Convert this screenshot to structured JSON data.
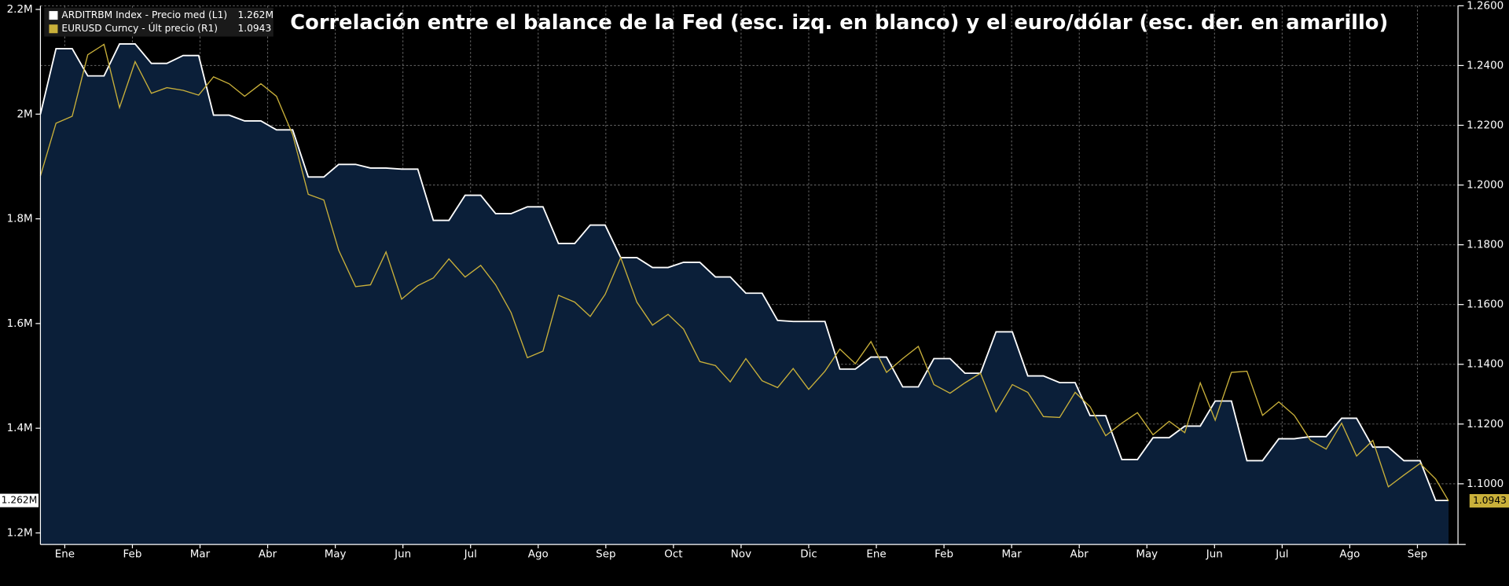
{
  "chart_data": {
    "type": "line",
    "title": "Correlación entre el balance de la Fed (esc. izq. en blanco) y el euro/dólar (esc. der. en amarillo)",
    "xlim": [
      0.14,
      21.1
    ],
    "xticks": [
      {
        "value": 0.5,
        "label": "Ene"
      },
      {
        "value": 1.5,
        "label": "Feb"
      },
      {
        "value": 2.5,
        "label": "Mar"
      },
      {
        "value": 3.5,
        "label": "Abr"
      },
      {
        "value": 4.5,
        "label": "May"
      },
      {
        "value": 5.5,
        "label": "Jun"
      },
      {
        "value": 6.5,
        "label": "Jul"
      },
      {
        "value": 7.5,
        "label": "Ago"
      },
      {
        "value": 8.5,
        "label": "Sep"
      },
      {
        "value": 9.5,
        "label": "Oct"
      },
      {
        "value": 10.5,
        "label": "Nov"
      },
      {
        "value": 11.5,
        "label": "Dic"
      },
      {
        "value": 12.5,
        "label": "Ene"
      },
      {
        "value": 13.5,
        "label": "Feb"
      },
      {
        "value": 14.5,
        "label": "Mar"
      },
      {
        "value": 15.5,
        "label": "Abr"
      },
      {
        "value": 16.5,
        "label": "May"
      },
      {
        "value": 17.5,
        "label": "Jun"
      },
      {
        "value": 18.5,
        "label": "Jul"
      },
      {
        "value": 19.5,
        "label": "Ago"
      },
      {
        "value": 20.5,
        "label": "Sep"
      }
    ],
    "ylim": [
      1178000,
      2207000
    ],
    "yticks": [
      {
        "value": 1200000,
        "label": "1.2M"
      },
      {
        "value": 1400000,
        "label": "1.4M"
      },
      {
        "value": 1600000,
        "label": "1.6M"
      },
      {
        "value": 1800000,
        "label": "1.8M"
      },
      {
        "value": 2000000,
        "label": "2M"
      },
      {
        "value": 2200000,
        "label": "2.2M"
      }
    ],
    "y2lim": [
      1.0797,
      1.26
    ],
    "y2ticks": [
      {
        "value": 1.1,
        "label": "1.1000"
      },
      {
        "value": 1.12,
        "label": "1.1200"
      },
      {
        "value": 1.14,
        "label": "1.1400"
      },
      {
        "value": 1.16,
        "label": "1.1600"
      },
      {
        "value": 1.18,
        "label": "1.1800"
      },
      {
        "value": 1.2,
        "label": "1.2000"
      },
      {
        "value": 1.22,
        "label": "1.2200"
      },
      {
        "value": 1.24,
        "label": "1.2400"
      },
      {
        "value": 1.26,
        "label": "1.2600"
      }
    ],
    "grid": true,
    "x": [
      0.14,
      0.37,
      0.61,
      0.84,
      1.08,
      1.31,
      1.54,
      1.78,
      2.01,
      2.25,
      2.48,
      2.7,
      2.93,
      3.16,
      3.4,
      3.63,
      3.87,
      4.1,
      4.33,
      4.55,
      4.8,
      5.02,
      5.25,
      5.48,
      5.72,
      5.95,
      6.18,
      6.42,
      6.65,
      6.87,
      7.1,
      7.34,
      7.57,
      7.8,
      8.04,
      8.27,
      8.49,
      8.72,
      8.96,
      9.19,
      9.42,
      9.65,
      9.89,
      10.12,
      10.34,
      10.57,
      10.81,
      11.04,
      11.27,
      11.5,
      11.74,
      11.96,
      12.19,
      12.42,
      12.65,
      12.89,
      13.12,
      13.35,
      13.59,
      13.81,
      14.04,
      14.27,
      14.51,
      14.74,
      14.97,
      15.21,
      15.44,
      15.66,
      15.89,
      16.13,
      16.36,
      16.59,
      16.83,
      17.06,
      17.29,
      17.51,
      17.75,
      17.98,
      18.21,
      18.45,
      18.68,
      18.92,
      19.15,
      19.38,
      19.6,
      19.84,
      20.07,
      20.3,
      20.54,
      20.77,
      20.96
    ],
    "series": [
      {
        "name": "ARDITRBM Index - Precio med (L1)",
        "color": "#ffffff",
        "fill": "#0b1f39",
        "axis": "y",
        "last_label": "1.262M",
        "values": [
          2000000,
          2125000,
          2125000,
          2073000,
          2073000,
          2134000,
          2134000,
          2097000,
          2097000,
          2112000,
          2112000,
          1998000,
          1998000,
          1987000,
          1987000,
          1970000,
          1970000,
          1880000,
          1880000,
          1904000,
          1904000,
          1897000,
          1897000,
          1895000,
          1895000,
          1797000,
          1797000,
          1845000,
          1845000,
          1810000,
          1810000,
          1823000,
          1823000,
          1753000,
          1753000,
          1788000,
          1788000,
          1726000,
          1726000,
          1707000,
          1707000,
          1717000,
          1717000,
          1689000,
          1689000,
          1658000,
          1658000,
          1606000,
          1604000,
          1604000,
          1604000,
          1513000,
          1513000,
          1536000,
          1536000,
          1479000,
          1479000,
          1533000,
          1533000,
          1505000,
          1505000,
          1584000,
          1584000,
          1500000,
          1500000,
          1487000,
          1487000,
          1424000,
          1424000,
          1340000,
          1340000,
          1382000,
          1382000,
          1404000,
          1404000,
          1452000,
          1452000,
          1338000,
          1338000,
          1380000,
          1380000,
          1384000,
          1384000,
          1419000,
          1419000,
          1364000,
          1364000,
          1338000,
          1338000,
          1262000,
          1262000
        ]
      },
      {
        "name": "EURUSD Curncy - Últ precio (R1)",
        "color": "#c9b03a",
        "axis": "y2",
        "values": [
          1.203,
          1.2207,
          1.223,
          1.2436,
          1.2471,
          1.2259,
          1.2413,
          1.2307,
          1.2326,
          1.2317,
          1.2301,
          1.2362,
          1.2339,
          1.2297,
          1.2339,
          1.2297,
          1.2169,
          1.1969,
          1.195,
          1.1782,
          1.166,
          1.1666,
          1.1776,
          1.1618,
          1.1663,
          1.1689,
          1.1753,
          1.1692,
          1.1731,
          1.1666,
          1.1573,
          1.1422,
          1.1444,
          1.1631,
          1.1608,
          1.156,
          1.1634,
          1.1757,
          1.1608,
          1.1531,
          1.1567,
          1.1518,
          1.1409,
          1.1396,
          1.1341,
          1.1419,
          1.1345,
          1.1322,
          1.1386,
          1.1316,
          1.1377,
          1.1451,
          1.1402,
          1.1476,
          1.1373,
          1.1419,
          1.146,
          1.1332,
          1.1303,
          1.1338,
          1.137,
          1.1241,
          1.1332,
          1.1306,
          1.1225,
          1.1222,
          1.1306,
          1.1258,
          1.1161,
          1.1203,
          1.1238,
          1.1164,
          1.1209,
          1.1171,
          1.1338,
          1.1213,
          1.1373,
          1.1377,
          1.1229,
          1.1274,
          1.1229,
          1.1145,
          1.1116,
          1.1203,
          1.1093,
          1.1145,
          1.099,
          1.1029,
          1.1068,
          1.1016,
          1.0943
        ]
      }
    ]
  }
}
